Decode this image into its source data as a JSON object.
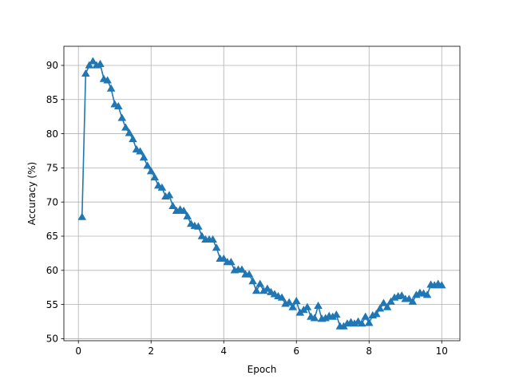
{
  "chart_data": {
    "type": "line",
    "title": "",
    "xlabel": "Epoch",
    "ylabel": "Accuracy (%)",
    "xlim": [
      -0.4,
      10.5
    ],
    "ylim": [
      49.7,
      92.8
    ],
    "xticks": [
      0,
      2,
      4,
      6,
      8,
      10
    ],
    "yticks": [
      50,
      55,
      60,
      65,
      70,
      75,
      80,
      85,
      90
    ],
    "grid": true,
    "marker": "triangle-up",
    "color": "#1f77b4",
    "series": [
      {
        "x": [
          0.1,
          0.2,
          0.3,
          0.4,
          0.5,
          0.6,
          0.7,
          0.8,
          0.9,
          1.0,
          1.1,
          1.2,
          1.3,
          1.4,
          1.5,
          1.6,
          1.7,
          1.8,
          1.9,
          2.0,
          2.1,
          2.2,
          2.3,
          2.4,
          2.5,
          2.6,
          2.7,
          2.8,
          2.9,
          3.0,
          3.1,
          3.2,
          3.3,
          3.4,
          3.5,
          3.6,
          3.7,
          3.8,
          3.9,
          4.0,
          4.1,
          4.2,
          4.3,
          4.4,
          4.5,
          4.6,
          4.7,
          4.8,
          4.9,
          5.0,
          5.1,
          5.2,
          5.3,
          5.4,
          5.5,
          5.6,
          5.7,
          5.8,
          5.9,
          6.0,
          6.1,
          6.2,
          6.3,
          6.4,
          6.5,
          6.6,
          6.7,
          6.8,
          6.9,
          7.0,
          7.1,
          7.2,
          7.3,
          7.4,
          7.5,
          7.6,
          7.7,
          7.8,
          7.9,
          8.0,
          8.1,
          8.2,
          8.3,
          8.4,
          8.5,
          8.6,
          8.7,
          8.8,
          8.9,
          9.0,
          9.1,
          9.2,
          9.3,
          9.4,
          9.5,
          9.6,
          9.7,
          9.8,
          9.9,
          10.0
        ],
        "y": [
          67.8,
          88.8,
          90.0,
          90.6,
          90.0,
          90.2,
          88.0,
          87.8,
          86.6,
          84.3,
          84.0,
          82.3,
          80.9,
          80.1,
          79.2,
          77.7,
          77.4,
          76.5,
          75.3,
          74.5,
          73.6,
          72.4,
          72.1,
          70.8,
          71.0,
          69.4,
          68.7,
          68.9,
          68.7,
          67.9,
          66.8,
          66.5,
          66.4,
          65.0,
          64.5,
          64.5,
          64.5,
          63.3,
          61.7,
          61.7,
          61.2,
          61.2,
          60.0,
          60.1,
          60.1,
          59.4,
          59.4,
          58.4,
          57.0,
          58.0,
          57.0,
          57.3,
          56.8,
          56.5,
          56.2,
          56.0,
          55.1,
          55.3,
          54.6,
          55.5,
          53.8,
          54.2,
          54.6,
          53.2,
          53.0,
          54.8,
          52.9,
          53.0,
          53.3,
          53.2,
          53.5,
          51.8,
          51.8,
          52.2,
          52.4,
          52.2,
          52.5,
          52.2,
          53.2,
          52.3,
          53.4,
          53.6,
          54.4,
          55.2,
          54.6,
          55.4,
          56.0,
          56.2,
          56.3,
          55.8,
          55.8,
          55.4,
          56.4,
          56.7,
          56.6,
          56.4,
          57.9,
          57.8,
          58.0,
          57.8
        ]
      }
    ]
  }
}
